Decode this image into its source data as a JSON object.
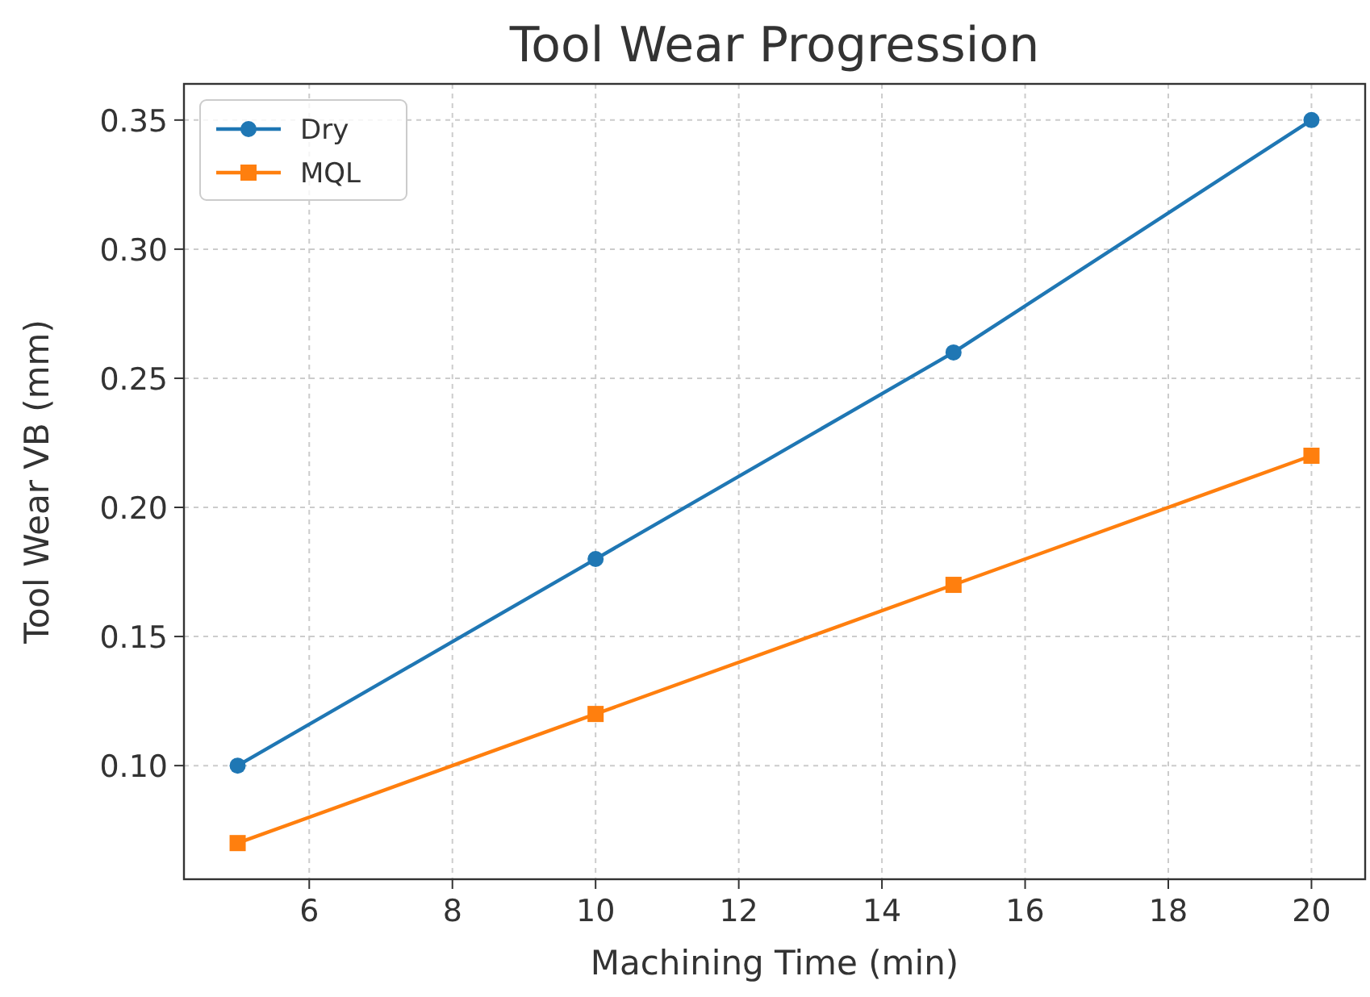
{
  "chart_data": {
    "type": "line",
    "title": "Tool Wear Progression",
    "xlabel": "Machining Time (min)",
    "ylabel": "Tool Wear VB (mm)",
    "x": [
      5,
      10,
      15,
      20
    ],
    "series": [
      {
        "name": "Dry",
        "color": "#1f77b4",
        "marker": "circle",
        "values": [
          0.1,
          0.18,
          0.26,
          0.35
        ]
      },
      {
        "name": "MQL",
        "color": "#ff7f0e",
        "marker": "square",
        "values": [
          0.07,
          0.12,
          0.17,
          0.22
        ]
      }
    ],
    "xlim": [
      4.25,
      20.75
    ],
    "xticks": [
      6,
      8,
      10,
      12,
      14,
      16,
      18,
      20
    ],
    "ylim": [
      0.056,
      0.364
    ],
    "yticks": [
      {
        "value": 0.1,
        "label": "0.10"
      },
      {
        "value": 0.15,
        "label": "0.15"
      },
      {
        "value": 0.2,
        "label": "0.20"
      },
      {
        "value": 0.25,
        "label": "0.25"
      },
      {
        "value": 0.3,
        "label": "0.30"
      },
      {
        "value": 0.35,
        "label": "0.35"
      }
    ],
    "grid": true,
    "legend": "top left",
    "line_style": "solid"
  }
}
